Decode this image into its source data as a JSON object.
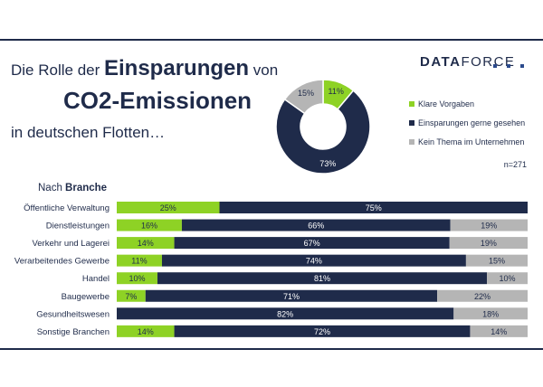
{
  "header": {
    "title_line1_prefix": "Die Rolle der",
    "title_line1_bold": "Einsparungen",
    "title_line1_suffix": "von",
    "title_line2": "CO2-Emissionen",
    "title_line3": "in deutschen Flotten…",
    "logo_bold": "DATA",
    "logo_light": "FORCE"
  },
  "colors": {
    "green": "#8ed225",
    "navy": "#1f2b4a",
    "gray": "#b5b5b5"
  },
  "chart_data": [
    {
      "type": "pie",
      "donut": true,
      "labels": [
        "Klare Vorgaben",
        "Einsparungen gerne gesehen",
        "Kein Thema im Unternehmen"
      ],
      "values": [
        11,
        73,
        15
      ],
      "value_labels": [
        "11%",
        "73%",
        "15%"
      ],
      "colors": [
        "#8ed225",
        "#1f2b4a",
        "#b5b5b5"
      ],
      "legend_position": "right",
      "note": "n=271"
    },
    {
      "type": "bar",
      "orientation": "horizontal",
      "stacked": true,
      "section_title_prefix": "Nach",
      "section_title_bold": "Branche",
      "categories": [
        "Öffentliche Verwaltung",
        "Dienstleistungen",
        "Verkehr und Lagerei",
        "Verarbeitendes Gewerbe",
        "Handel",
        "Baugewerbe",
        "Gesundheitswesen",
        "Sonstige Branchen"
      ],
      "series": [
        {
          "name": "Klare Vorgaben",
          "values": [
            25,
            16,
            14,
            11,
            10,
            7,
            0,
            14
          ],
          "labels": [
            "25%",
            "16%",
            "14%",
            "11%",
            "10%",
            "7%",
            "",
            "14%"
          ]
        },
        {
          "name": "Einsparungen gerne gesehen",
          "values": [
            75,
            66,
            67,
            74,
            81,
            71,
            82,
            72
          ],
          "labels": [
            "75%",
            "66%",
            "67%",
            "74%",
            "81%",
            "71%",
            "82%",
            "72%"
          ]
        },
        {
          "name": "Kein Thema im Unternehmen",
          "values": [
            0,
            19,
            19,
            15,
            10,
            22,
            18,
            14
          ],
          "labels": [
            "",
            "19%",
            "19%",
            "15%",
            "10%",
            "22%",
            "18%",
            "14%"
          ]
        }
      ]
    }
  ]
}
